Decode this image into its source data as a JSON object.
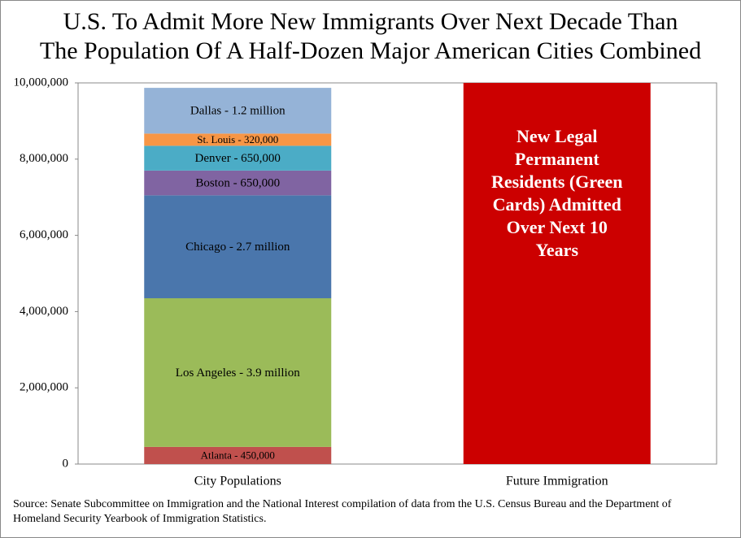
{
  "chart_data": {
    "type": "stacked_bar",
    "title": [
      "U.S. To Admit More New Immigrants Over Next Decade Than",
      "The Population Of A Half-Dozen Major American Cities Combined"
    ],
    "categories": [
      "City Populations",
      "Future Immigration"
    ],
    "series": [
      {
        "color": "#c0504d",
        "values": [
          450000,
          null
        ],
        "value_labels": [
          "Atlanta - 450,000",
          null
        ]
      },
      {
        "color": "#9bbb59",
        "values": [
          3900000,
          null
        ],
        "value_labels": [
          "Los Angeles - 3.9 million",
          null
        ]
      },
      {
        "color": "#4a76ac",
        "values": [
          2700000,
          null
        ],
        "value_labels": [
          "Chicago - 2.7 million",
          null
        ]
      },
      {
        "color": "#8064a2",
        "values": [
          650000,
          null
        ],
        "value_labels": [
          "Boston - 650,000",
          null
        ]
      },
      {
        "color": "#4bacc6",
        "values": [
          650000,
          null
        ],
        "value_labels": [
          "Denver - 650,000",
          null
        ]
      },
      {
        "color": "#f79646",
        "values": [
          320000,
          null
        ],
        "value_labels": [
          "St. Louis - 320,000",
          null
        ]
      },
      {
        "color": "#95b3d7",
        "values": [
          1200000,
          null
        ],
        "value_labels": [
          "Dallas - 1.2 million",
          null
        ]
      },
      {
        "color": "#cc0000",
        "values": [
          null,
          10000000
        ],
        "value_labels": [
          null,
          "New Legal Permanent Residents (Green Cards) Admitted Over Next 10 Years"
        ]
      }
    ],
    "ylim": [
      0,
      10000000
    ],
    "yticks": [
      0,
      {
        "value": 2000000,
        "label": "2,000,000"
      },
      {
        "value": 4000000,
        "label": "4,000,000"
      },
      {
        "value": 6000000,
        "label": "6,000,000"
      },
      {
        "value": 8000000,
        "label": "8,000,000"
      },
      {
        "value": 10000000,
        "label": "10,000,000"
      }
    ],
    "grid": false,
    "source": "Source: Senate Subcommittee on Immigration and the National Interest compilation of data from the U.S. Census Bureau and the Department of Homeland Security Yearbook of Immigration Statistics."
  }
}
